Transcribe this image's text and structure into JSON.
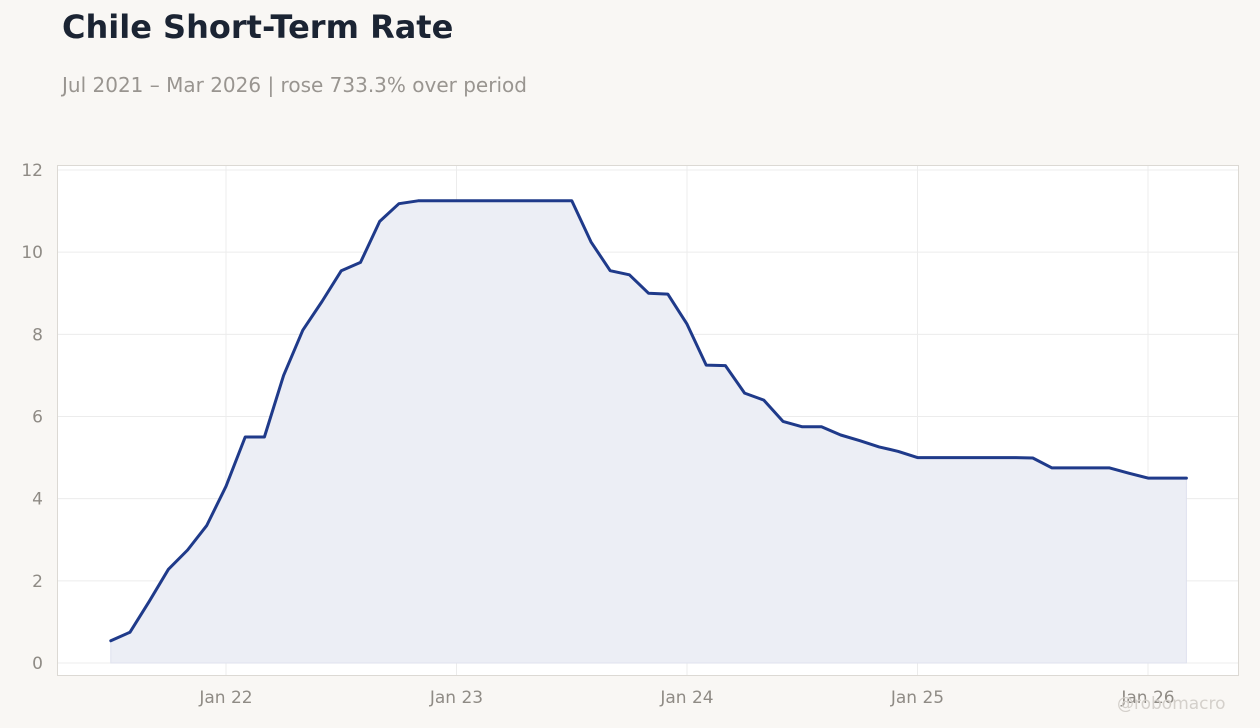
{
  "title": "Chile Short-Term Rate",
  "subtitle": "Jul 2021 – Mar 2026 | rose 733.3% over period",
  "watermark": "@robomacro",
  "colors": {
    "line": "#1f3a8a",
    "area": "#eceef5",
    "grid": "#ececec",
    "frame": "#dcd9d4",
    "background": "#f9f7f4",
    "plot_background": "#ffffff"
  },
  "chart_data": {
    "type": "area",
    "title": "Chile Short-Term Rate",
    "xlabel": "",
    "ylabel": "",
    "x_start": "2021-07",
    "x_end": "2026-03",
    "ylim": [
      -0.3,
      12.1
    ],
    "yticks": [
      0,
      2,
      4,
      6,
      8,
      10,
      12
    ],
    "xticks": [
      {
        "label": "Jan 22",
        "date": "2022-01"
      },
      {
        "label": "Jan 23",
        "date": "2023-01"
      },
      {
        "label": "Jan 24",
        "date": "2024-01"
      },
      {
        "label": "Jan 25",
        "date": "2025-01"
      },
      {
        "label": "Jan 26",
        "date": "2026-01"
      }
    ],
    "grid": true,
    "series": [
      {
        "x": [
          "2021-07",
          "2021-08",
          "2021-09",
          "2021-10",
          "2021-11",
          "2021-12",
          "2022-01",
          "2022-02",
          "2022-03",
          "2022-04",
          "2022-05",
          "2022-06",
          "2022-07",
          "2022-08",
          "2022-09",
          "2022-10",
          "2022-11",
          "2022-12",
          "2023-01",
          "2023-02",
          "2023-03",
          "2023-04",
          "2023-05",
          "2023-06",
          "2023-07",
          "2023-08",
          "2023-09",
          "2023-10",
          "2023-11",
          "2023-12",
          "2024-01",
          "2024-02",
          "2024-03",
          "2024-04",
          "2024-05",
          "2024-06",
          "2024-07",
          "2024-08",
          "2024-09",
          "2024-10",
          "2024-11",
          "2024-12",
          "2025-01",
          "2025-02",
          "2025-03",
          "2025-04",
          "2025-05",
          "2025-06",
          "2025-07",
          "2025-08",
          "2025-09",
          "2025-10",
          "2025-11",
          "2025-12",
          "2026-01",
          "2026-02",
          "2026-03"
        ],
        "values": [
          0.54,
          0.75,
          1.5,
          2.28,
          2.75,
          3.35,
          4.3,
          5.5,
          5.5,
          7.0,
          8.1,
          8.8,
          9.55,
          9.75,
          10.75,
          11.18,
          11.25,
          11.25,
          11.25,
          11.25,
          11.25,
          11.25,
          11.25,
          11.25,
          11.25,
          10.25,
          9.55,
          9.45,
          9.0,
          8.98,
          8.25,
          7.25,
          7.24,
          6.57,
          6.4,
          5.88,
          5.75,
          5.75,
          5.55,
          5.41,
          5.26,
          5.15,
          5.0,
          5.0,
          5.0,
          5.0,
          5.0,
          5.0,
          4.99,
          4.75,
          4.75,
          4.75,
          4.75,
          4.62,
          4.5,
          4.5,
          4.5
        ]
      }
    ]
  }
}
